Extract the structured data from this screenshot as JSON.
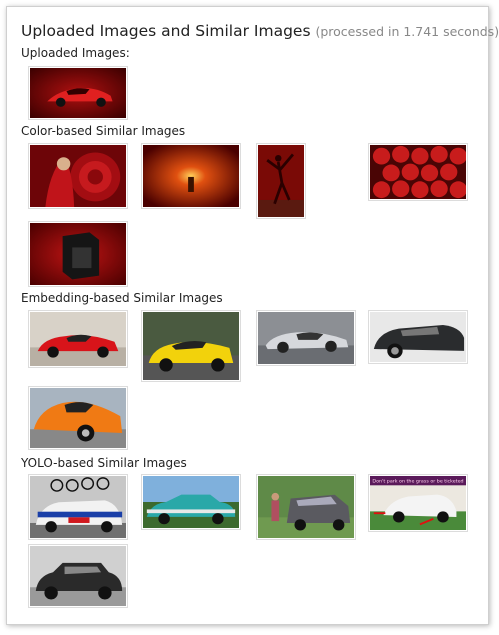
{
  "page": {
    "title": "Uploaded Images and Similar Images",
    "processed_note": "(processed in 1.741 seconds)"
  },
  "sections": [
    {
      "label": "Uploaded Images:"
    },
    {
      "label": "Color-based Similar Images"
    },
    {
      "label": "Embedding-based Similar Images"
    },
    {
      "label": "YOLO-based Similar Images"
    }
  ],
  "yolo_sign_text": "Don't park on the grass or be ticketed"
}
